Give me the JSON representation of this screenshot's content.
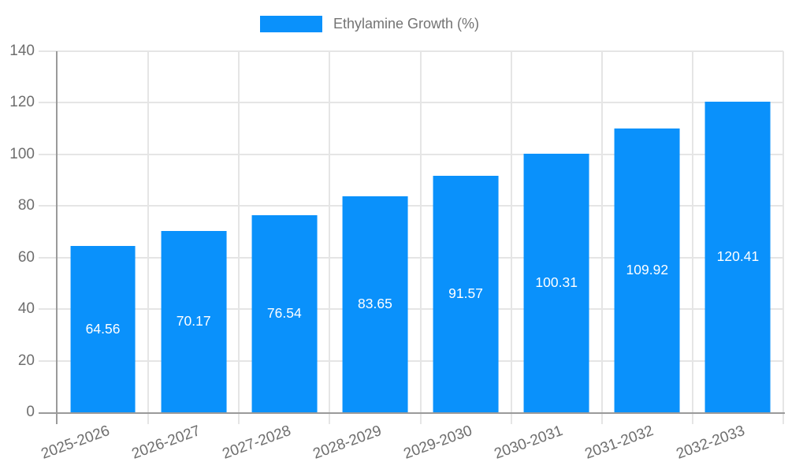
{
  "chart_data": {
    "type": "bar",
    "title": "",
    "categories": [
      "2025-2026",
      "2026-2027",
      "2027-2028",
      "2028-2029",
      "2029-2030",
      "2030-2031",
      "2031-2032",
      "2032-2033"
    ],
    "series": [
      {
        "name": "Ethylamine Growth (%)",
        "values": [
          64.56,
          70.17,
          76.54,
          83.65,
          91.57,
          100.31,
          109.92,
          120.41
        ],
        "value_labels": [
          "64.56",
          "70.17",
          "76.54",
          "83.65",
          "91.57",
          "100.31",
          "109.92",
          "120.41"
        ]
      }
    ],
    "ylim": [
      0,
      140
    ],
    "yticks": [
      0,
      20,
      40,
      60,
      80,
      100,
      120,
      140
    ],
    "ytick_labels": [
      "0",
      "20",
      "40",
      "60",
      "80",
      "100",
      "120",
      "140"
    ],
    "xlabel": "",
    "ylabel": "",
    "grid": true,
    "legend_position": "top",
    "value_labels_inside_bars": true,
    "colors": {
      "bar": "#0a91fb",
      "bar_value_text": "#ffffff",
      "grid": "#e5e5e5",
      "axis_line": "#9a9a9a",
      "tick_text": "#6e6e6e",
      "legend_text": "#737373",
      "background": "#ffffff"
    }
  }
}
